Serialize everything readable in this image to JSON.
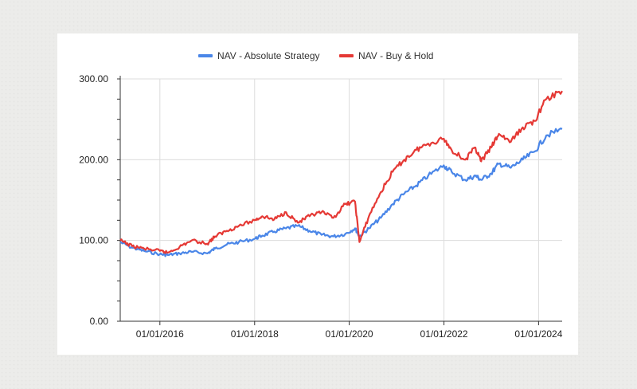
{
  "chart_data": {
    "type": "line",
    "title": "",
    "xlabel": "",
    "ylabel": "",
    "ylim": [
      0,
      300
    ],
    "yticks": [
      "0.00",
      "100.00",
      "200.00",
      "300.00"
    ],
    "x_start": "2015-03-01",
    "x_end": "2024-07-01",
    "xticks": [
      {
        "label": "01/01/2016",
        "date": "2016-01-01"
      },
      {
        "label": "01/01/2018",
        "date": "2018-01-01"
      },
      {
        "label": "01/01/2020",
        "date": "2020-01-01"
      },
      {
        "label": "01/01/2022",
        "date": "2022-01-01"
      },
      {
        "label": "01/01/2024",
        "date": "2024-01-01"
      }
    ],
    "grid": true,
    "legend_position": "top",
    "x": [
      "2015-03-01",
      "2015-06-01",
      "2015-09-01",
      "2016-01-01",
      "2016-03-01",
      "2016-06-01",
      "2016-09-01",
      "2017-01-01",
      "2017-03-01",
      "2017-06-01",
      "2017-09-01",
      "2018-01-01",
      "2018-03-01",
      "2018-06-01",
      "2018-09-01",
      "2018-12-01",
      "2019-03-01",
      "2019-06-01",
      "2019-09-01",
      "2019-12-01",
      "2020-02-15",
      "2020-03-20",
      "2020-06-01",
      "2020-09-01",
      "2020-12-01",
      "2021-03-01",
      "2021-06-01",
      "2021-09-01",
      "2021-12-31",
      "2022-03-01",
      "2022-06-15",
      "2022-09-01",
      "2022-10-15",
      "2022-12-31",
      "2023-03-01",
      "2023-06-01",
      "2023-09-01",
      "2023-12-01",
      "2024-03-01",
      "2024-07-01"
    ],
    "series": [
      {
        "name": "NAV - Absolute Strategy",
        "color": "#4a86e8",
        "values": [
          98,
          91,
          87,
          83,
          82,
          84,
          86,
          84,
          90,
          95,
          98,
          102,
          106,
          111,
          115,
          118,
          112,
          107,
          105,
          108,
          115,
          105,
          115,
          128,
          145,
          158,
          168,
          180,
          193,
          185,
          175,
          180,
          175,
          183,
          195,
          190,
          200,
          210,
          230,
          238
        ]
      },
      {
        "name": "NAV - Buy & Hold",
        "color": "#e53935",
        "values": [
          100,
          93,
          90,
          87,
          85,
          92,
          100,
          96,
          105,
          112,
          118,
          125,
          130,
          126,
          135,
          122,
          130,
          135,
          128,
          145,
          148,
          98,
          130,
          160,
          185,
          200,
          212,
          220,
          226,
          212,
          200,
          215,
          198,
          215,
          232,
          222,
          240,
          248,
          275,
          285
        ]
      }
    ]
  }
}
